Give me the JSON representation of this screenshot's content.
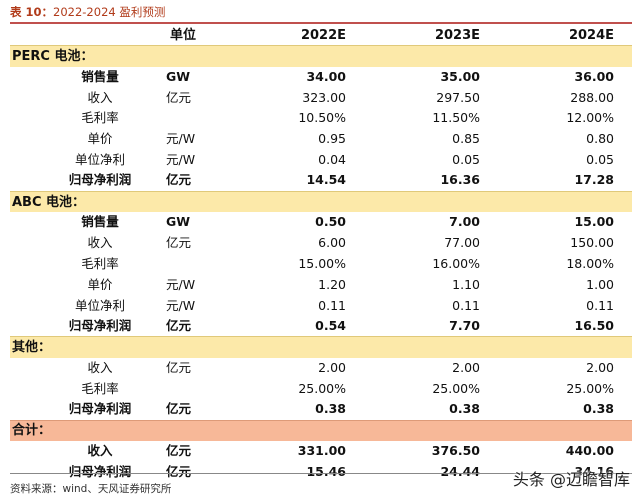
{
  "title": {
    "label": "表 10：",
    "text": "2022-2024 盈利预测"
  },
  "header": {
    "blank": "",
    "unit": "单位",
    "years": [
      "2022E",
      "2023E",
      "2024E"
    ]
  },
  "sections": [
    {
      "name": "PERC 电池：",
      "rows": [
        {
          "label": "销售量",
          "unit": "GW",
          "values": [
            "34.00",
            "35.00",
            "36.00"
          ],
          "bold": true
        },
        {
          "label": "收入",
          "unit": "亿元",
          "values": [
            "323.00",
            "297.50",
            "288.00"
          ],
          "bold": false
        },
        {
          "label": "毛利率",
          "unit": "",
          "values": [
            "10.50%",
            "11.50%",
            "12.00%"
          ],
          "bold": false
        },
        {
          "label": "单价",
          "unit": "元/W",
          "values": [
            "0.95",
            "0.85",
            "0.80"
          ],
          "bold": false
        },
        {
          "label": "单位净利",
          "unit": "元/W",
          "values": [
            "0.04",
            "0.05",
            "0.05"
          ],
          "bold": false
        },
        {
          "label": "归母净利润",
          "unit": "亿元",
          "values": [
            "14.54",
            "16.36",
            "17.28"
          ],
          "bold": true
        }
      ]
    },
    {
      "name": "ABC 电池：",
      "rows": [
        {
          "label": "销售量",
          "unit": "GW",
          "values": [
            "0.50",
            "7.00",
            "15.00"
          ],
          "bold": true
        },
        {
          "label": "收入",
          "unit": "亿元",
          "values": [
            "6.00",
            "77.00",
            "150.00"
          ],
          "bold": false
        },
        {
          "label": "毛利率",
          "unit": "",
          "values": [
            "15.00%",
            "16.00%",
            "18.00%"
          ],
          "bold": false
        },
        {
          "label": "单价",
          "unit": "元/W",
          "values": [
            "1.20",
            "1.10",
            "1.00"
          ],
          "bold": false
        },
        {
          "label": "单位净利",
          "unit": "元/W",
          "values": [
            "0.11",
            "0.11",
            "0.11"
          ],
          "bold": false
        },
        {
          "label": "归母净利润",
          "unit": "亿元",
          "values": [
            "0.54",
            "7.70",
            "16.50"
          ],
          "bold": true
        }
      ]
    },
    {
      "name": "其他：",
      "rows": [
        {
          "label": "收入",
          "unit": "亿元",
          "values": [
            "2.00",
            "2.00",
            "2.00"
          ],
          "bold": false
        },
        {
          "label": "毛利率",
          "unit": "",
          "values": [
            "25.00%",
            "25.00%",
            "25.00%"
          ],
          "bold": false
        },
        {
          "label": "归母净利润",
          "unit": "亿元",
          "values": [
            "0.38",
            "0.38",
            "0.38"
          ],
          "bold": true
        }
      ]
    },
    {
      "name": "合计：",
      "total": true,
      "rows": [
        {
          "label": "收入",
          "unit": "亿元",
          "values": [
            "331.00",
            "376.50",
            "440.00"
          ],
          "bold": true
        },
        {
          "label": "归母净利润",
          "unit": "亿元",
          "values": [
            "15.46",
            "24.44",
            "34.16"
          ],
          "bold": true
        }
      ]
    }
  ],
  "source": "资料来源：wind、天风证券研究所",
  "watermark": "头条 @迈瞻智库",
  "colors": {
    "section_bg": "#fce9a9",
    "total_bg": "#f7b898",
    "title_color": "#b13b1a",
    "rule_color": "#c0504d"
  }
}
